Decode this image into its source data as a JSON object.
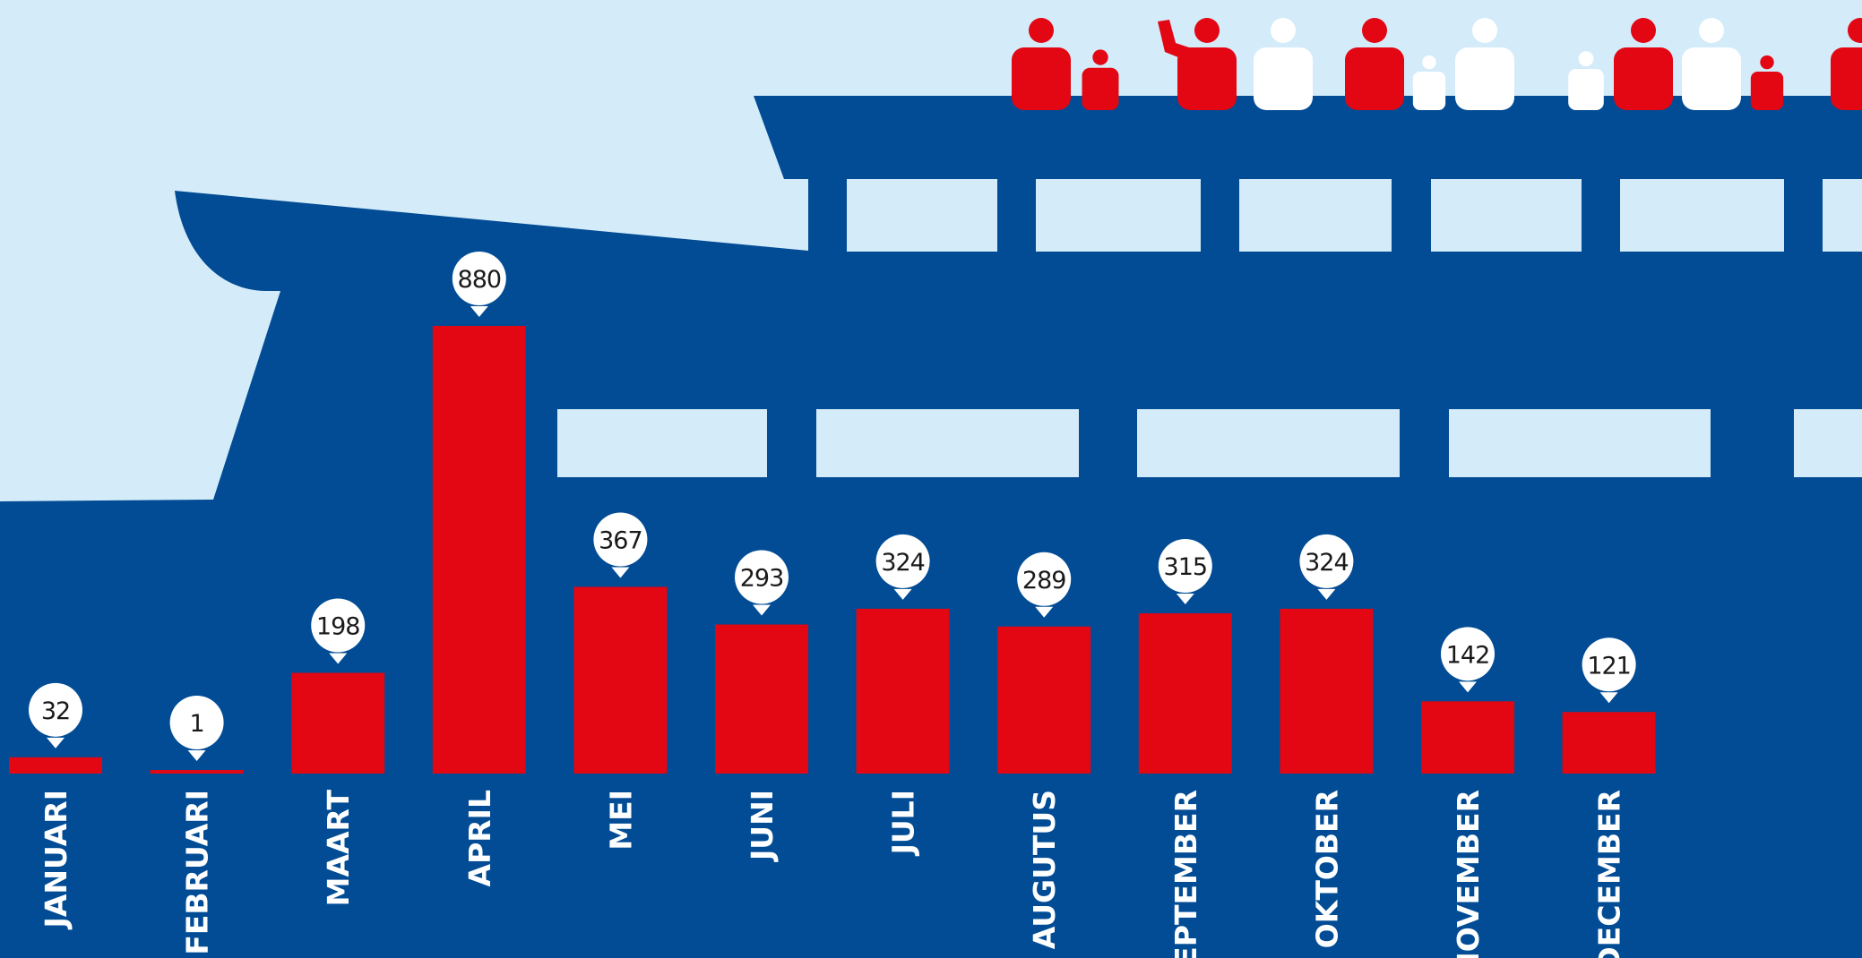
{
  "colors": {
    "sky": "#d4ebf9",
    "hull": "#014c95",
    "window": "#d4ebf9",
    "bar": "#e30613",
    "bubble": "#ffffff",
    "person_red": "#e30613",
    "person_white": "#ffffff"
  },
  "decoration": {
    "illustration": "ferry-ship",
    "passengers": [
      "red",
      "red",
      "red",
      "white",
      "red",
      "white",
      "white",
      "white",
      "red",
      "white",
      "red",
      "red"
    ]
  },
  "chart_data": {
    "type": "bar",
    "categories": [
      "JANUARI",
      "FEBRUARI",
      "MAART",
      "APRIL",
      "MEI",
      "JUNI",
      "JULI",
      "AUGUTUS",
      "SEPTEMBER",
      "OKTOBER",
      "NOVEMBER",
      "DECEMBER"
    ],
    "values": [
      32,
      1,
      198,
      880,
      367,
      293,
      324,
      289,
      315,
      324,
      142,
      121
    ],
    "data_labels": [
      "32",
      "1",
      "198",
      "880",
      "367",
      "293",
      "324",
      "289",
      "315",
      "324",
      "142",
      "121"
    ],
    "ylim": [
      0,
      880
    ],
    "grid": false,
    "legend": "none"
  }
}
